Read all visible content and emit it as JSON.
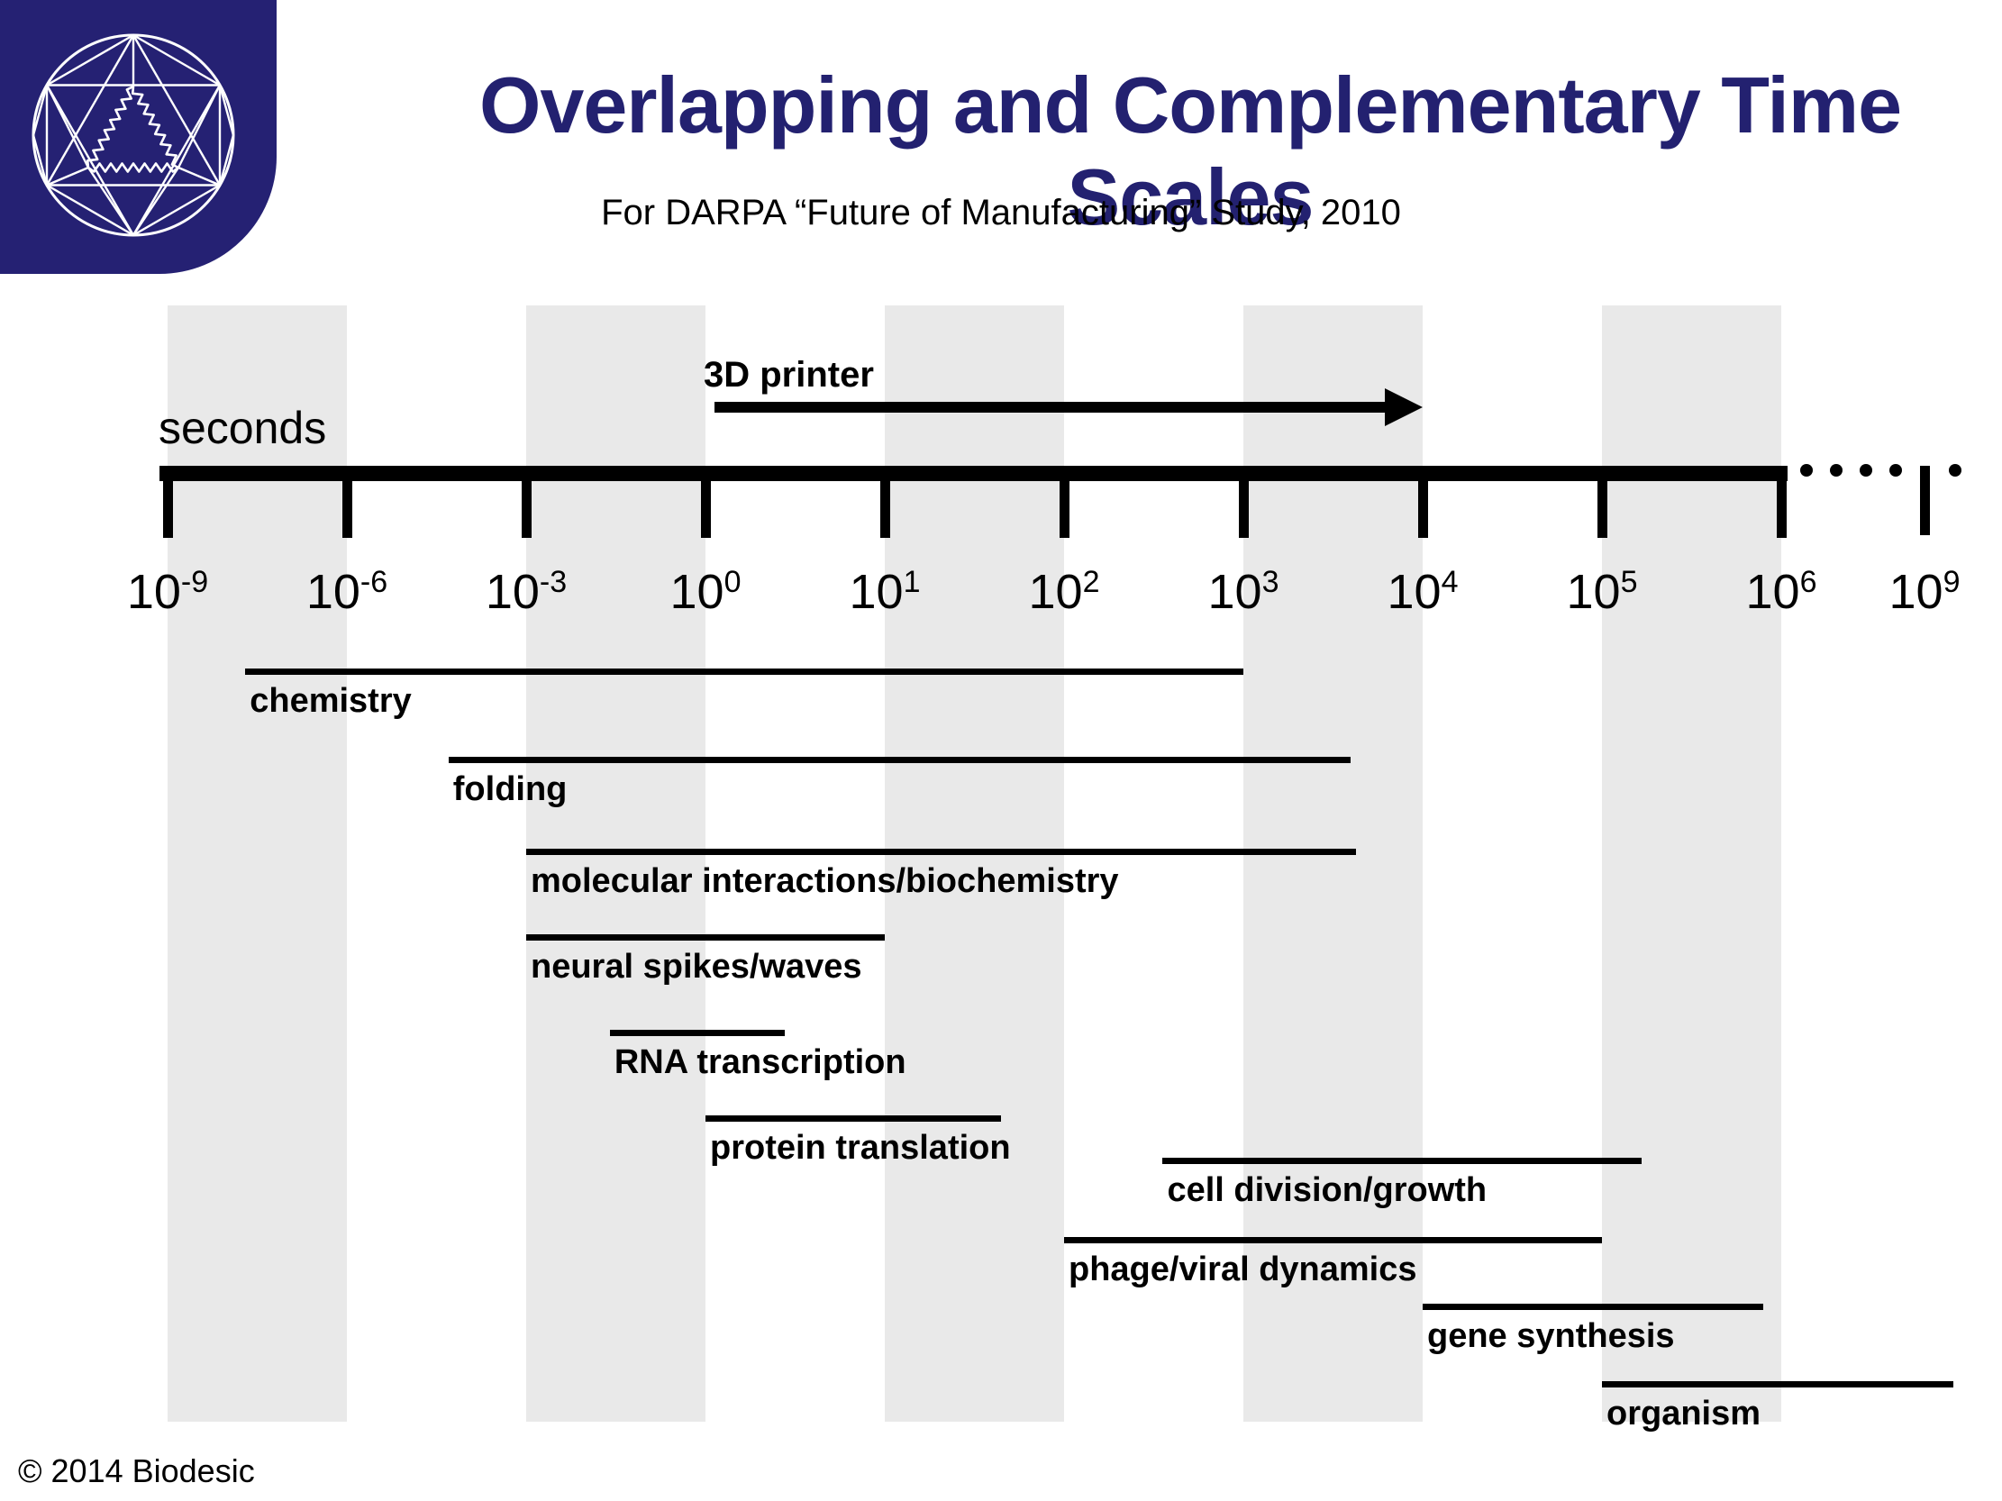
{
  "slide": {
    "title": "Overlapping and Complementary Time Scales",
    "subtitle": "For DARPA “Future of Manufacturing” Study, 2010",
    "copyright": "© 2014 Biodesic"
  },
  "logo": {
    "name": "biodesic-geodesic-sphere-logo",
    "background": "#252173",
    "line_color": "#ffffff"
  },
  "axis": {
    "unit_label": "seconds",
    "ticks": [
      {
        "base": "10",
        "exp": "-9",
        "value": -9
      },
      {
        "base": "10",
        "exp": "-6",
        "value": -6
      },
      {
        "base": "10",
        "exp": "-3",
        "value": -3
      },
      {
        "base": "10",
        "exp": "0",
        "value": 0
      },
      {
        "base": "10",
        "exp": "1",
        "value": 1
      },
      {
        "base": "10",
        "exp": "2",
        "value": 2
      },
      {
        "base": "10",
        "exp": "3",
        "value": 3
      },
      {
        "base": "10",
        "exp": "4",
        "value": 4
      },
      {
        "base": "10",
        "exp": "5",
        "value": 5
      },
      {
        "base": "10",
        "exp": "6",
        "value": 6
      },
      {
        "base": "10",
        "exp": "9",
        "value": 9,
        "detached": true
      }
    ],
    "break_dots_count": 5
  },
  "annotation_arrow": {
    "label": "3D printer",
    "range_exp": [
      0,
      4
    ]
  },
  "chart_data": {
    "type": "bar",
    "subtype": "horizontal-log-time-ranges",
    "title": "Overlapping and Complementary Time Scales",
    "xlabel": "seconds",
    "x_unit": "log10 seconds",
    "x_tick_exponents": [
      -9,
      -6,
      -3,
      0,
      1,
      2,
      3,
      4,
      5,
      6,
      9
    ],
    "axis_note": "compressed log scale: 3 decades per division from 10^-9 to 10^0, 1 decade per division from 10^0 to 10^6, dotted break out to 10^9",
    "background_bands_exponents": [
      [
        -9,
        -6
      ],
      [
        -3,
        0
      ],
      [
        1,
        2
      ],
      [
        3,
        4
      ],
      [
        5,
        6
      ]
    ],
    "series": [
      {
        "name": "chemistry",
        "range_exp": [
          -7.7,
          3.0
        ]
      },
      {
        "name": "folding",
        "range_exp": [
          -4.3,
          3.6
        ]
      },
      {
        "name": "molecular interactions/biochemistry",
        "range_exp": [
          -3.0,
          3.63
        ]
      },
      {
        "name": "neural spikes/waves",
        "range_exp": [
          -3.0,
          1.0
        ]
      },
      {
        "name": "RNA transcription",
        "range_exp": [
          -1.6,
          0.44
        ]
      },
      {
        "name": "protein translation",
        "range_exp": [
          0.0,
          1.65
        ]
      },
      {
        "name": "cell division/growth",
        "range_exp": [
          2.55,
          5.22
        ]
      },
      {
        "name": "phage/viral dynamics",
        "range_exp": [
          2.0,
          5.0
        ]
      },
      {
        "name": "gene synthesis",
        "range_exp": [
          4.0,
          5.9
        ]
      },
      {
        "name": "organism",
        "range_exp": [
          5.0,
          9.6
        ]
      }
    ]
  },
  "colors": {
    "accent_navy": "#252173",
    "band_gray": "#e9e9e9",
    "ink": "#000000"
  }
}
